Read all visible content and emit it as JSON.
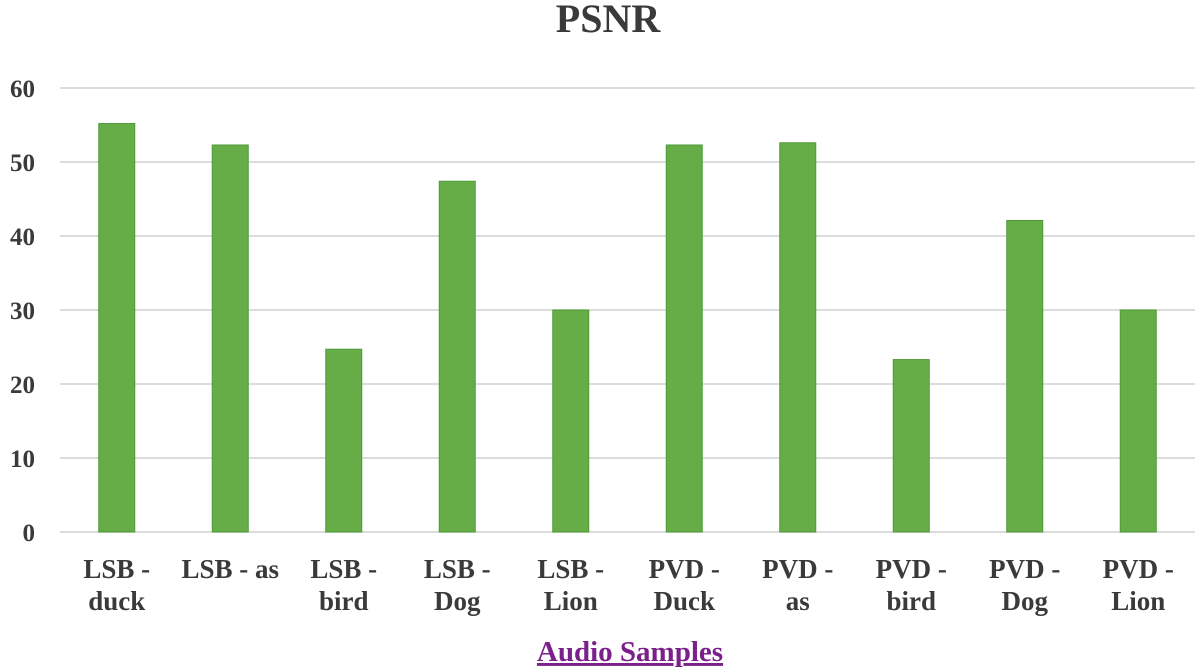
{
  "chart_data": {
    "type": "bar",
    "title": "PSNR",
    "xlabel": "Audio Samples",
    "ylabel": "",
    "ylim": [
      0,
      60
    ],
    "yticks": [
      0,
      10,
      20,
      30,
      40,
      50,
      60
    ],
    "grid": true,
    "legend": "none",
    "bar_color": "#66ad48",
    "categories": [
      [
        "LSB -",
        "duck"
      ],
      [
        "LSB - as"
      ],
      [
        "LSB -",
        "bird"
      ],
      [
        "LSB -",
        "Dog"
      ],
      [
        "LSB -",
        "Lion"
      ],
      [
        "PVD -",
        "Duck"
      ],
      [
        "PVD -",
        "as"
      ],
      [
        "PVD -",
        "bird"
      ],
      [
        "PVD -",
        "Dog"
      ],
      [
        "PVD -",
        "Lion"
      ]
    ],
    "values": [
      55.2,
      52.3,
      24.7,
      47.4,
      30.0,
      52.3,
      52.6,
      23.3,
      42.1,
      30.0
    ]
  }
}
